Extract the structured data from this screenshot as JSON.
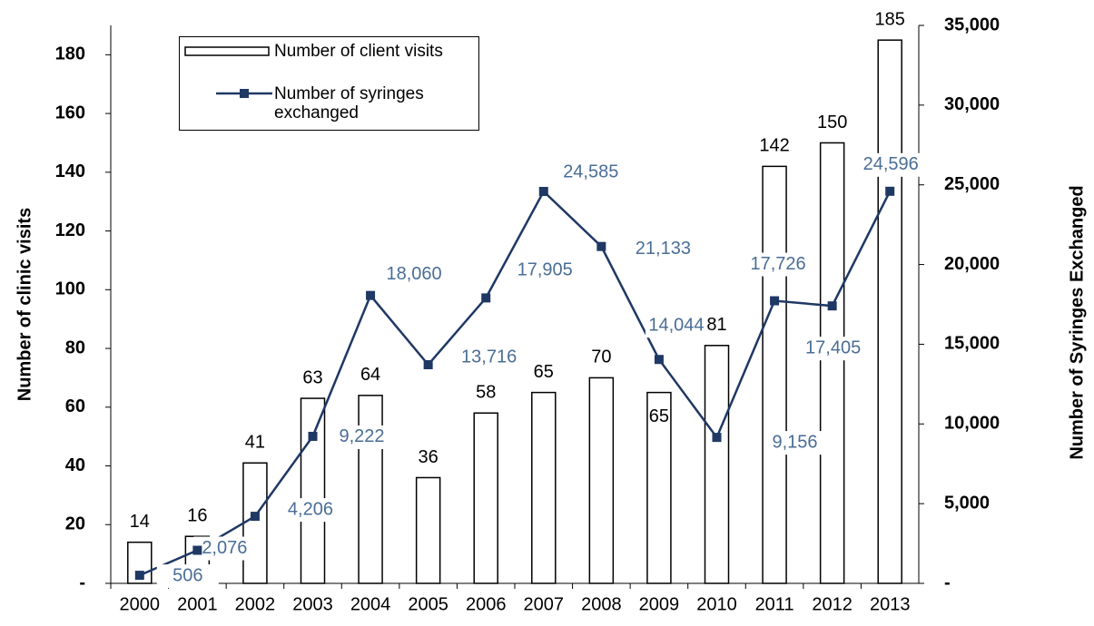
{
  "chart_data": {
    "type": "bar-line",
    "x_label": "",
    "y_label": "Number of clinic visits",
    "y2_label": "Number of Syringes Exchanged",
    "categories": [
      "2000",
      "2001",
      "2002",
      "2003",
      "2004",
      "2005",
      "2006",
      "2007",
      "2008",
      "2009",
      "2010",
      "2011",
      "2012",
      "2013"
    ],
    "series": [
      {
        "name": "Number of client visits",
        "type": "bar",
        "color": "#ffffff",
        "edge": "#000000",
        "values": [
          14,
          16,
          41,
          63,
          64,
          36,
          58,
          65,
          70,
          65,
          81,
          142,
          150,
          185
        ]
      },
      {
        "name": "Number of syringes exchanged",
        "type": "line",
        "axis": "y2",
        "color": "#1f3864",
        "label_color": "#4a6d96",
        "values": [
          506,
          2076,
          4206,
          9222,
          18060,
          13716,
          17905,
          24585,
          21133,
          14044,
          9156,
          17726,
          17405,
          24596
        ],
        "value_labels": [
          "506",
          "2,076",
          "4,206",
          "9,222",
          "18,060",
          "13,716",
          "17,905",
          "24,585",
          "21,133",
          "14,044",
          "9,156",
          "17,726",
          "17,405",
          "24,596"
        ]
      }
    ],
    "ylim": [
      0,
      190
    ],
    "yticks": [
      {
        "value": 0,
        "label": "-"
      },
      20,
      40,
      60,
      80,
      100,
      120,
      140,
      160,
      180
    ],
    "y2lim": [
      0,
      35000
    ],
    "y2ticks": [
      {
        "value": 0,
        "label": "-"
      },
      {
        "value": 5000,
        "label": "5,000"
      },
      {
        "value": 10000,
        "label": "10,000"
      },
      {
        "value": 15000,
        "label": "15,000"
      },
      {
        "value": 20000,
        "label": "20,000"
      },
      {
        "value": 25000,
        "label": "25,000"
      },
      {
        "value": 30000,
        "label": "30,000"
      },
      {
        "value": 35000,
        "label": "35,000"
      }
    ]
  }
}
